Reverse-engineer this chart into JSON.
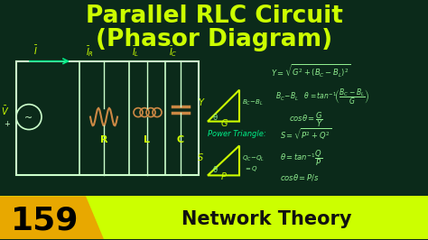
{
  "bg_color": "#0b2a1a",
  "title_line1": "Parallel RLC Circuit",
  "title_line2": "(Phasor Diagram)",
  "title_color": "#ccff00",
  "title_fontsize": 19,
  "formula_color": "#90ee90",
  "triangle_color": "#ccff00",
  "arrow_color": "#00ee88",
  "label_yellow": "#ccff00",
  "label_green": "#00ee88",
  "resistor_color": "#cc8844",
  "inductor_color": "#cc8844",
  "cap_color": "#cc8844",
  "wire_color": "#ccffcc",
  "bottom_bg": "#ccff00",
  "bottom_num_bg": "#e8a800",
  "bottom_number": "159",
  "bottom_text": "Network Theory",
  "bottom_text_color": "#111111"
}
